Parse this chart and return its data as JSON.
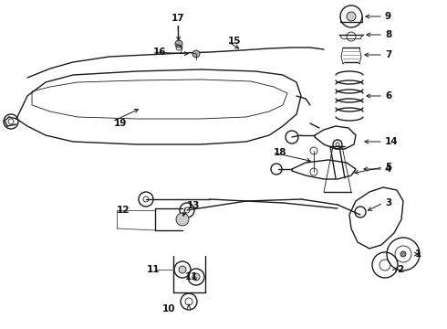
{
  "bg_color": "#ffffff",
  "line_color": "#1a1a1a",
  "figsize": [
    4.9,
    3.6
  ],
  "dpi": 100
}
